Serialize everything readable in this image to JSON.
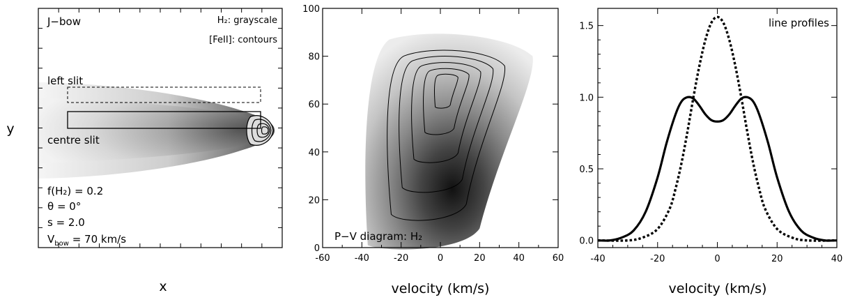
{
  "chart_data": [
    {
      "type": "heatmap",
      "panel": "bow-model",
      "xlabel": "x",
      "ylabel": "y",
      "annotations": {
        "model": "J−bow",
        "h2_key": "H₂: grayscale",
        "fe_key": "[FeII]: contours",
        "left_slit": "left slit",
        "centre_slit": "centre slit"
      },
      "parameters": [
        {
          "label": "f(H₂) = 0.2"
        },
        {
          "label": "θ = 0°"
        },
        {
          "label": "s = 2.0"
        },
        {
          "label": "V",
          "sub": "bow",
          "rest": " = 70 km/s"
        }
      ],
      "grayscale": "H2",
      "contours": "[FeII]"
    },
    {
      "type": "heatmap",
      "panel": "pv-diagram",
      "title": "P−V diagram: H₂",
      "xlabel": "velocity (km/s)",
      "ylabel": "",
      "xlim": [
        -60,
        60
      ],
      "ylim": [
        100,
        0
      ],
      "xticks": [
        -60,
        -40,
        -20,
        0,
        20,
        40,
        60
      ],
      "yticks": [
        0,
        20,
        40,
        60,
        80,
        100
      ],
      "peak": {
        "x": 3,
        "y": 70
      },
      "contour_levels": [
        0.85,
        0.68,
        0.5,
        0.33,
        0.17
      ]
    },
    {
      "type": "line",
      "panel": "line-profiles",
      "title": "line profiles",
      "xlabel": "velocity (km/s)",
      "ylabel": "",
      "xlim": [
        -40,
        40
      ],
      "ylim": [
        -0.05,
        1.62
      ],
      "xticks": [
        -40,
        -20,
        0,
        20,
        40
      ],
      "yticks": [
        0.0,
        0.5,
        1.0,
        1.5
      ],
      "ytick_labels": [
        "0.0",
        "0.5",
        "1.0",
        "1.5"
      ],
      "series": [
        {
          "style": "solid",
          "x": [
            -40,
            -36,
            -32,
            -28,
            -24,
            -20,
            -17,
            -14,
            -12,
            -10,
            -8,
            -6,
            -4,
            -2,
            0,
            2,
            4,
            6,
            8,
            10,
            12,
            14,
            17,
            20,
            24,
            28,
            32,
            36,
            40
          ],
          "y": [
            0.0,
            0.0,
            0.02,
            0.07,
            0.2,
            0.44,
            0.68,
            0.88,
            0.97,
            1.0,
            0.99,
            0.94,
            0.88,
            0.84,
            0.83,
            0.84,
            0.88,
            0.94,
            0.99,
            1.0,
            0.97,
            0.88,
            0.68,
            0.44,
            0.2,
            0.07,
            0.02,
            0.0,
            0.0
          ]
        },
        {
          "style": "dotted",
          "x": [
            -40,
            -30,
            -25,
            -20,
            -16,
            -14,
            -12,
            -10,
            -8,
            -6,
            -4,
            -2,
            0,
            2,
            4,
            6,
            8,
            10,
            12,
            14,
            16,
            20,
            25,
            30,
            40
          ],
          "y": [
            0.0,
            0.0,
            0.02,
            0.08,
            0.22,
            0.36,
            0.54,
            0.76,
            1.0,
            1.22,
            1.4,
            1.52,
            1.56,
            1.52,
            1.4,
            1.22,
            1.0,
            0.76,
            0.54,
            0.36,
            0.22,
            0.08,
            0.02,
            0.0,
            0.0
          ]
        }
      ]
    }
  ]
}
